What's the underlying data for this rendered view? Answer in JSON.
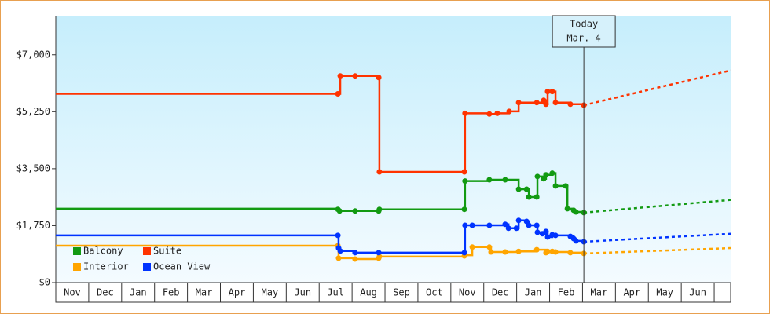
{
  "chart_data": {
    "type": "line",
    "xlim": [
      0,
      20.5
    ],
    "xticks": [
      {
        "value": 0.5,
        "label": "Nov"
      },
      {
        "value": 1.5,
        "label": "Dec"
      },
      {
        "value": 2.5,
        "label": "Jan"
      },
      {
        "value": 3.5,
        "label": "Feb"
      },
      {
        "value": 4.5,
        "label": "Mar"
      },
      {
        "value": 5.5,
        "label": "Apr"
      },
      {
        "value": 6.5,
        "label": "May"
      },
      {
        "value": 7.5,
        "label": "Jun"
      },
      {
        "value": 8.5,
        "label": "Jul"
      },
      {
        "value": 9.5,
        "label": "Aug"
      },
      {
        "value": 10.5,
        "label": "Sep"
      },
      {
        "value": 11.5,
        "label": "Oct"
      },
      {
        "value": 12.5,
        "label": "Nov"
      },
      {
        "value": 13.5,
        "label": "Dec"
      },
      {
        "value": 14.5,
        "label": "Jan"
      },
      {
        "value": 15.5,
        "label": "Feb"
      },
      {
        "value": 16.5,
        "label": "Mar"
      },
      {
        "value": 17.5,
        "label": "Apr"
      },
      {
        "value": 18.5,
        "label": "May"
      },
      {
        "value": 19.5,
        "label": "Jun"
      }
    ],
    "ylim": [
      0,
      8200
    ],
    "yticks": [
      {
        "value": 0,
        "label": "$0"
      },
      {
        "value": 1750,
        "label": "$1,750"
      },
      {
        "value": 3500,
        "label": "$3,500"
      },
      {
        "value": 5250,
        "label": "$5,250"
      },
      {
        "value": 7000,
        "label": "$7,000"
      }
    ],
    "annotation": {
      "x": 16.04,
      "lines": [
        "Today",
        "Mar. 4"
      ]
    },
    "series": [
      {
        "name": "Balcony",
        "color": "#129a12",
        "x": [
          0,
          8.57,
          8.62,
          9.09,
          9.81,
          9.83,
          12.41,
          12.43,
          13.17,
          13.65,
          14.06,
          14.3,
          14.37,
          14.61,
          14.63,
          14.82,
          14.89,
          15.08,
          15.18,
          15.49,
          15.54,
          15.73,
          15.8,
          16.04
        ],
        "values": [
          2270,
          2250,
          2200,
          2200,
          2200,
          2250,
          2250,
          3120,
          3160,
          3160,
          2870,
          2870,
          2630,
          2630,
          3260,
          3190,
          3310,
          3360,
          2970,
          2970,
          2270,
          2220,
          2170,
          2150
        ],
        "forecast": {
          "x": [
            16.04,
            20.5
          ],
          "values": [
            2150,
            2540
          ]
        }
      },
      {
        "name": "Suite",
        "color": "#ff3300",
        "x": [
          0,
          8.57,
          8.64,
          9.09,
          9.81,
          9.83,
          12.41,
          12.43,
          13.17,
          13.41,
          13.77,
          14.06,
          14.61,
          14.82,
          14.89,
          14.94,
          15.08,
          15.18,
          15.63,
          16.04
        ],
        "values": [
          5800,
          5800,
          6350,
          6350,
          6300,
          3400,
          3400,
          5200,
          5180,
          5200,
          5260,
          5530,
          5530,
          5600,
          5480,
          5870,
          5870,
          5530,
          5480,
          5450
        ],
        "forecast": {
          "x": [
            16.04,
            20.5
          ],
          "values": [
            5450,
            6520
          ]
        }
      },
      {
        "name": "Interior",
        "color": "#ffa500",
        "x": [
          0,
          8.57,
          8.59,
          9.09,
          9.81,
          9.83,
          12.41,
          12.43,
          12.65,
          13.17,
          13.22,
          13.65,
          14.06,
          14.61,
          14.89,
          14.94,
          15.08,
          15.18,
          15.63,
          16.04
        ],
        "values": [
          1135,
          1135,
          750,
          725,
          750,
          800,
          820,
          840,
          1090,
          1090,
          940,
          940,
          960,
          1010,
          920,
          960,
          960,
          940,
          920,
          895
        ],
        "forecast": {
          "x": [
            16.04,
            20.5
          ],
          "values": [
            895,
            1060
          ]
        }
      },
      {
        "name": "Ocean View",
        "color": "#0033ff",
        "x": [
          0,
          8.57,
          8.59,
          8.64,
          9.09,
          9.81,
          12.41,
          12.43,
          12.65,
          13.17,
          13.65,
          13.75,
          13.99,
          14.06,
          14.3,
          14.37,
          14.61,
          14.63,
          14.78,
          14.89,
          14.94,
          15.08,
          15.18,
          15.63,
          15.73,
          15.8,
          16.04
        ],
        "values": [
          1450,
          1450,
          1060,
          970,
          920,
          920,
          920,
          1760,
          1760,
          1760,
          1790,
          1670,
          1670,
          1910,
          1880,
          1760,
          1760,
          1545,
          1500,
          1570,
          1400,
          1470,
          1450,
          1420,
          1350,
          1280,
          1255
        ],
        "forecast": {
          "x": [
            16.04,
            20.5
          ],
          "values": [
            1255,
            1500
          ]
        }
      }
    ]
  }
}
